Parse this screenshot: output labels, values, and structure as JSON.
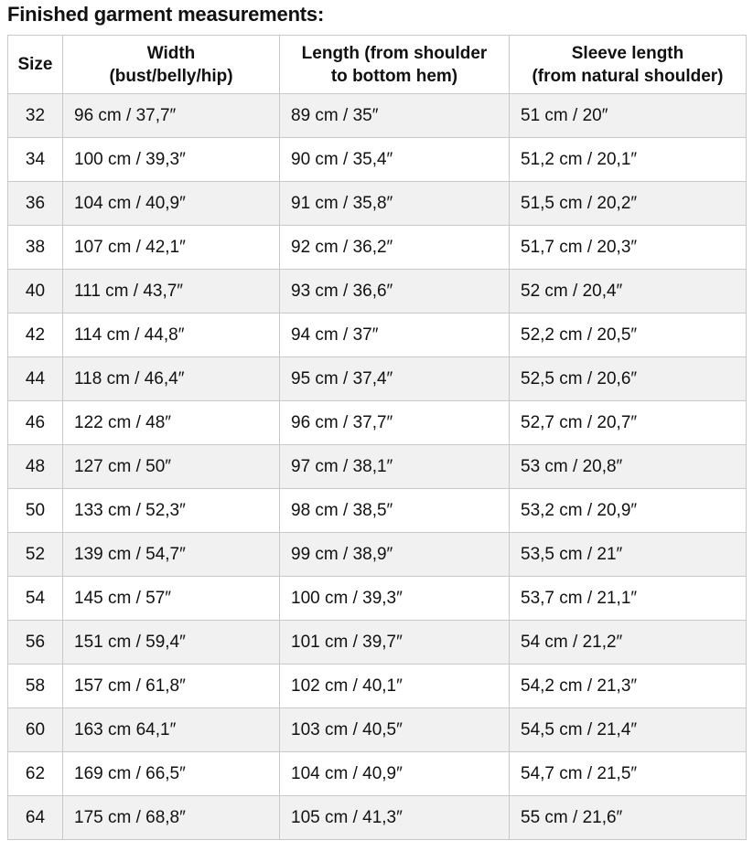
{
  "page": {
    "title": "Finished garment measurements:"
  },
  "colors": {
    "row_alt_bg": "#f1f1f1",
    "row_bg": "#ffffff",
    "border": "#c9c9c9",
    "text": "#111111"
  },
  "table": {
    "columns": [
      {
        "id": "size",
        "line1": "Size",
        "line2": ""
      },
      {
        "id": "width",
        "line1": "Width",
        "line2": "(bust/belly/hip)"
      },
      {
        "id": "length",
        "line1": "Length (from shoulder",
        "line2": "to bottom hem)"
      },
      {
        "id": "sleeve",
        "line1": "Sleeve length",
        "line2": "(from natural shoulder)"
      }
    ],
    "rows": [
      {
        "size": "32",
        "width": "96 cm / 37,7″",
        "length": "89 cm / 35″",
        "sleeve": "51 cm / 20″"
      },
      {
        "size": "34",
        "width": "100 cm / 39,3″",
        "length": "90 cm / 35,4″",
        "sleeve": "51,2 cm / 20,1″"
      },
      {
        "size": "36",
        "width": "104 cm / 40,9″",
        "length": "91 cm / 35,8″",
        "sleeve": "51,5 cm / 20,2″"
      },
      {
        "size": "38",
        "width": "107 cm / 42,1″",
        "length": "92 cm / 36,2″",
        "sleeve": "51,7 cm / 20,3″"
      },
      {
        "size": "40",
        "width": "111 cm / 43,7″",
        "length": "93 cm / 36,6″",
        "sleeve": "52 cm / 20,4″"
      },
      {
        "size": "42",
        "width": "114 cm / 44,8″",
        "length": "94 cm / 37″",
        "sleeve": "52,2 cm / 20,5″"
      },
      {
        "size": "44",
        "width": "118 cm / 46,4″",
        "length": "95 cm / 37,4″",
        "sleeve": "52,5 cm / 20,6″"
      },
      {
        "size": "46",
        "width": "122 cm / 48″",
        "length": "96 cm / 37,7″",
        "sleeve": "52,7 cm / 20,7″"
      },
      {
        "size": "48",
        "width": "127 cm / 50″",
        "length": "97 cm / 38,1″",
        "sleeve": "53 cm / 20,8″"
      },
      {
        "size": "50",
        "width": "133 cm / 52,3″",
        "length": "98 cm / 38,5″",
        "sleeve": "53,2 cm / 20,9″"
      },
      {
        "size": "52",
        "width": "139 cm / 54,7″",
        "length": "99 cm / 38,9″",
        "sleeve": "53,5 cm / 21″"
      },
      {
        "size": "54",
        "width": "145 cm / 57″",
        "length": "100 cm / 39,3″",
        "sleeve": "53,7 cm / 21,1″"
      },
      {
        "size": "56",
        "width": "151 cm / 59,4″",
        "length": "101 cm / 39,7″",
        "sleeve": "54 cm / 21,2″"
      },
      {
        "size": "58",
        "width": "157 cm / 61,8″",
        "length": "102 cm / 40,1″",
        "sleeve": "54,2 cm / 21,3″"
      },
      {
        "size": "60",
        "width": "163 cm 64,1″",
        "length": "103 cm / 40,5″",
        "sleeve": "54,5 cm / 21,4″"
      },
      {
        "size": "62",
        "width": "169 cm / 66,5″",
        "length": "104 cm / 40,9″",
        "sleeve": "54,7 cm / 21,5″"
      },
      {
        "size": "64",
        "width": "175 cm / 68,8″",
        "length": "105 cm / 41,3″",
        "sleeve": "55 cm / 21,6″"
      }
    ]
  }
}
